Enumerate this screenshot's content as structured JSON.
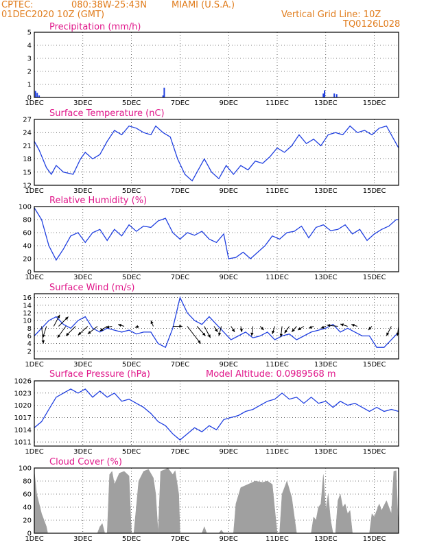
{
  "header": {
    "source": "CPTEC:",
    "coords": "080:38W-25:43N",
    "location": "MIAMI (U.S.A.)",
    "date": "01DEC2020 10Z (GMT)",
    "grid_note": "Vertical Grid Line: 10Z",
    "model": "TQ0126L028"
  },
  "colors": {
    "header": "#e07b1a",
    "titles": "#e0178a",
    "series": "#1f3fe0",
    "bars_precip": "#1f3fe0",
    "cloud_fill": "#a0a0a0"
  },
  "x_axis": {
    "ticks": [
      "1DEC",
      "3DEC",
      "5DEC",
      "7DEC",
      "9DEC",
      "11DEC",
      "13DEC",
      "15DEC"
    ],
    "range_days": [
      1,
      16
    ]
  },
  "chart_data": [
    {
      "type": "bar",
      "title": "Precipitation (mm/h)",
      "ylim": [
        0,
        5
      ],
      "yticks": [
        0,
        1,
        2,
        3,
        4,
        5
      ],
      "x": [
        1.05,
        1.12,
        1.2,
        6.3,
        6.35,
        12.9,
        12.95,
        13.35,
        13.45
      ],
      "values": [
        0.5,
        0.35,
        0.15,
        0.15,
        0.75,
        0.3,
        0.55,
        0.3,
        0.25
      ]
    },
    {
      "type": "line",
      "title": "Surface Temperature (nC)",
      "ylim": [
        12,
        27
      ],
      "yticks": [
        12,
        15,
        18,
        21,
        24,
        27
      ],
      "x": [
        1,
        1.2,
        1.5,
        1.7,
        1.9,
        2.2,
        2.6,
        2.9,
        3.1,
        3.4,
        3.7,
        4.0,
        4.3,
        4.6,
        4.9,
        5.2,
        5.5,
        5.8,
        6.0,
        6.3,
        6.6,
        6.9,
        7.2,
        7.5,
        7.8,
        8.0,
        8.3,
        8.6,
        8.9,
        9.2,
        9.5,
        9.8,
        10.1,
        10.4,
        10.7,
        11.0,
        11.3,
        11.6,
        11.9,
        12.2,
        12.5,
        12.8,
        13.1,
        13.4,
        13.7,
        14.0,
        14.3,
        14.6,
        14.9,
        15.2,
        15.5,
        15.8,
        16
      ],
      "values": [
        22,
        20,
        16,
        14.5,
        16.5,
        15,
        14.5,
        18,
        19.5,
        18,
        19,
        22,
        24.5,
        23.5,
        25.5,
        25,
        24,
        23.5,
        25.5,
        24,
        23,
        18,
        14.5,
        13,
        16,
        18,
        15,
        13.5,
        16.5,
        14.5,
        16.5,
        15.5,
        17.5,
        17,
        18.5,
        20.5,
        19.5,
        21,
        23.5,
        21.5,
        22.5,
        21,
        23.5,
        24,
        23.5,
        25.5,
        24,
        24.5,
        23.5,
        25,
        25.5,
        22.5,
        20.5
      ]
    },
    {
      "type": "line",
      "title": "Relative Humidity (%)",
      "ylim": [
        0,
        100
      ],
      "yticks": [
        0,
        20,
        40,
        60,
        80,
        100
      ],
      "x": [
        1,
        1.3,
        1.6,
        1.9,
        2.2,
        2.5,
        2.8,
        3.1,
        3.4,
        3.7,
        4.0,
        4.3,
        4.6,
        4.9,
        5.2,
        5.5,
        5.8,
        6.1,
        6.4,
        6.7,
        7.0,
        7.3,
        7.6,
        7.9,
        8.2,
        8.5,
        8.8,
        9.0,
        9.3,
        9.6,
        9.9,
        10.2,
        10.5,
        10.8,
        11.1,
        11.4,
        11.7,
        12.0,
        12.3,
        12.6,
        12.9,
        13.2,
        13.5,
        13.8,
        14.1,
        14.4,
        14.7,
        15.0,
        15.3,
        15.6,
        15.9,
        16
      ],
      "values": [
        98,
        80,
        40,
        18,
        35,
        55,
        60,
        45,
        60,
        65,
        48,
        65,
        55,
        72,
        62,
        70,
        68,
        78,
        82,
        60,
        50,
        60,
        56,
        62,
        50,
        45,
        58,
        20,
        22,
        30,
        20,
        30,
        40,
        55,
        50,
        60,
        62,
        70,
        52,
        68,
        72,
        63,
        65,
        72,
        58,
        65,
        48,
        58,
        65,
        70,
        80,
        80
      ]
    },
    {
      "type": "line",
      "title": "Surface Wind (m/s)",
      "ylim": [
        0,
        17
      ],
      "yticks": [
        2,
        4,
        6,
        8,
        10,
        12,
        14,
        16
      ],
      "x": [
        1,
        1.3,
        1.6,
        1.9,
        2.2,
        2.5,
        2.8,
        3.1,
        3.4,
        3.7,
        4.0,
        4.3,
        4.6,
        4.9,
        5.2,
        5.5,
        5.8,
        6.1,
        6.4,
        6.7,
        7.0,
        7.3,
        7.6,
        7.9,
        8.2,
        8.5,
        8.8,
        9.1,
        9.4,
        9.7,
        10.0,
        10.3,
        10.6,
        10.9,
        11.2,
        11.5,
        11.8,
        12.1,
        12.4,
        12.7,
        13.0,
        13.3,
        13.6,
        13.9,
        14.2,
        14.5,
        14.8,
        15.1,
        15.4,
        15.7,
        16
      ],
      "values": [
        6,
        8,
        10,
        11,
        9,
        8,
        10,
        11,
        8,
        7,
        8,
        7.5,
        7,
        7.5,
        6.5,
        7,
        7,
        4,
        3,
        8,
        16,
        12,
        10,
        9,
        11,
        9,
        7,
        5,
        6,
        7,
        5.5,
        6,
        7,
        5,
        6,
        6.5,
        5,
        6,
        7,
        7.5,
        8,
        9,
        7,
        8,
        7,
        6,
        6,
        3,
        3,
        5,
        7
      ],
      "wind_barbs": [
        {
          "day": 1.3,
          "dx": 0.15,
          "dy": -4.5
        },
        {
          "day": 1.5,
          "dx": -0.3,
          "dy": -3.0
        },
        {
          "day": 1.8,
          "dx": 0.5,
          "dy": 3.0
        },
        {
          "day": 2.0,
          "dx": 0.8,
          "dy": 2.5
        },
        {
          "day": 2.3,
          "dx": -0.7,
          "dy": -3.0
        },
        {
          "day": 2.7,
          "dx": -0.8,
          "dy": -2.5
        },
        {
          "day": 3.2,
          "dx": -0.8,
          "dy": -2.3
        },
        {
          "day": 3.6,
          "dx": -0.8,
          "dy": -2.0
        },
        {
          "day": 4.0,
          "dx": -0.6,
          "dy": -1.2
        },
        {
          "day": 4.2,
          "dx": -0.5,
          "dy": -0.3
        },
        {
          "day": 4.7,
          "dx": -0.5,
          "dy": 0.5
        },
        {
          "day": 5.3,
          "dx": -0.3,
          "dy": -0.3
        },
        {
          "day": 5.9,
          "dx": -0.2,
          "dy": 1.5
        },
        {
          "day": 6.7,
          "dx": 0.8,
          "dy": 0.0
        },
        {
          "day": 7.3,
          "dx": 1.1,
          "dy": -4.5
        },
        {
          "day": 7.7,
          "dx": 0.7,
          "dy": -2.5
        },
        {
          "day": 8.0,
          "dx": 0.5,
          "dy": -3.0
        },
        {
          "day": 8.4,
          "dx": 0.3,
          "dy": -1.5
        },
        {
          "day": 8.7,
          "dx": -0.2,
          "dy": -2.5
        },
        {
          "day": 9.1,
          "dx": 0.3,
          "dy": -1.5
        },
        {
          "day": 9.5,
          "dx": 0.1,
          "dy": -1.5
        },
        {
          "day": 10.0,
          "dx": -0.1,
          "dy": -2.5
        },
        {
          "day": 10.3,
          "dx": 0.3,
          "dy": -1.0
        },
        {
          "day": 10.9,
          "dx": -0.2,
          "dy": -2.0
        },
        {
          "day": 11.2,
          "dx": -0.1,
          "dy": -2.8
        },
        {
          "day": 11.5,
          "dx": -0.4,
          "dy": -1.8
        },
        {
          "day": 11.8,
          "dx": -0.4,
          "dy": -1.5
        },
        {
          "day": 12.1,
          "dx": -0.5,
          "dy": -1.0
        },
        {
          "day": 12.5,
          "dx": -0.4,
          "dy": -0.5
        },
        {
          "day": 13.0,
          "dx": -0.4,
          "dy": -0.5
        },
        {
          "day": 13.5,
          "dx": -0.9,
          "dy": 0.3
        },
        {
          "day": 13.9,
          "dx": -0.6,
          "dy": 0.6
        },
        {
          "day": 14.3,
          "dx": -0.5,
          "dy": 0.5
        },
        {
          "day": 14.9,
          "dx": -0.3,
          "dy": -1.0
        },
        {
          "day": 15.7,
          "dx": -0.4,
          "dy": -2.5
        },
        {
          "day": 16.0,
          "dx": -0.1,
          "dy": -2.5
        }
      ]
    },
    {
      "type": "line",
      "title": "Surface Pressure (hPa)",
      "annotation": "Model Altitude: 0.0989568 m",
      "ylim": [
        1010,
        1026
      ],
      "yticks": [
        1011,
        1014,
        1017,
        1020,
        1023,
        1026
      ],
      "x": [
        1,
        1.3,
        1.6,
        1.9,
        2.2,
        2.5,
        2.8,
        3.1,
        3.4,
        3.7,
        4.0,
        4.3,
        4.6,
        4.9,
        5.2,
        5.5,
        5.8,
        6.1,
        6.4,
        6.7,
        7.0,
        7.3,
        7.6,
        7.9,
        8.2,
        8.5,
        8.8,
        9.1,
        9.4,
        9.7,
        10.0,
        10.3,
        10.6,
        10.9,
        11.2,
        11.5,
        11.8,
        12.1,
        12.4,
        12.7,
        13.0,
        13.3,
        13.6,
        13.9,
        14.2,
        14.5,
        14.8,
        15.1,
        15.4,
        15.7,
        16
      ],
      "values": [
        1014.5,
        1016,
        1019,
        1022,
        1023,
        1024,
        1023,
        1024,
        1022,
        1023.5,
        1022,
        1023,
        1021,
        1021.5,
        1020.5,
        1019.5,
        1018,
        1016,
        1015,
        1013,
        1011.5,
        1013,
        1014.5,
        1013.5,
        1015,
        1014,
        1016.5,
        1017,
        1017.5,
        1018.5,
        1019,
        1020,
        1021,
        1021.5,
        1023,
        1021.5,
        1022,
        1020.5,
        1022,
        1020.5,
        1021,
        1019.5,
        1021,
        1020,
        1020.5,
        1019.5,
        1018.5,
        1019.5,
        1018.5,
        1019,
        1018.5
      ]
    },
    {
      "type": "area",
      "title": "Cloud Cover (%)",
      "ylim": [
        0,
        100
      ],
      "yticks": [
        0,
        20,
        40,
        60,
        80,
        100
      ],
      "segments": [
        {
          "x": [
            1.0,
            1.1,
            1.2,
            1.3,
            1.4,
            1.5,
            1.55
          ],
          "values": [
            95,
            60,
            45,
            30,
            20,
            10,
            0
          ]
        },
        {
          "x": [
            3.6,
            3.7,
            3.8,
            3.9
          ],
          "values": [
            0,
            10,
            15,
            0
          ]
        },
        {
          "x": [
            4.0,
            4.1,
            4.2,
            4.3,
            4.5,
            4.7,
            4.9,
            5.0
          ],
          "values": [
            0,
            90,
            95,
            75,
            92,
            95,
            88,
            0
          ]
        },
        {
          "x": [
            5.1,
            5.3,
            5.5,
            5.7,
            5.9,
            6.0,
            6.1,
            6.2,
            6.4,
            6.5,
            6.7,
            6.8,
            6.95,
            7.0
          ],
          "values": [
            0,
            80,
            95,
            98,
            85,
            60,
            0,
            95,
            98,
            100,
            90,
            96,
            60,
            0
          ]
        },
        {
          "x": [
            7.9,
            8.0,
            8.1
          ],
          "values": [
            0,
            10,
            0
          ]
        },
        {
          "x": [
            8.6,
            8.7,
            8.8
          ],
          "values": [
            0,
            5,
            0
          ]
        },
        {
          "x": [
            9.2,
            9.3,
            9.5,
            9.8,
            10.1,
            10.4,
            10.6,
            10.8,
            11.0
          ],
          "values": [
            0,
            45,
            70,
            75,
            80,
            78,
            80,
            75,
            0
          ]
        },
        {
          "x": [
            11.1,
            11.2,
            11.4,
            11.6,
            11.8
          ],
          "values": [
            0,
            60,
            80,
            55,
            0
          ]
        },
        {
          "x": [
            12.4,
            12.5,
            12.6,
            12.7,
            12.8,
            12.9,
            13.0,
            13.1,
            13.2,
            13.3
          ],
          "values": [
            0,
            25,
            20,
            40,
            45,
            90,
            35,
            60,
            20,
            0
          ]
        },
        {
          "x": [
            13.4,
            13.5,
            13.6,
            13.7,
            13.8,
            13.9,
            14.0,
            14.1
          ],
          "values": [
            0,
            50,
            60,
            40,
            45,
            30,
            35,
            0
          ]
        },
        {
          "x": [
            14.8,
            14.9,
            15.0,
            15.2,
            15.3,
            15.5,
            15.7,
            15.8,
            15.9,
            16.0
          ],
          "values": [
            0,
            30,
            25,
            45,
            35,
            50,
            30,
            95,
            96,
            0
          ]
        }
      ]
    }
  ]
}
